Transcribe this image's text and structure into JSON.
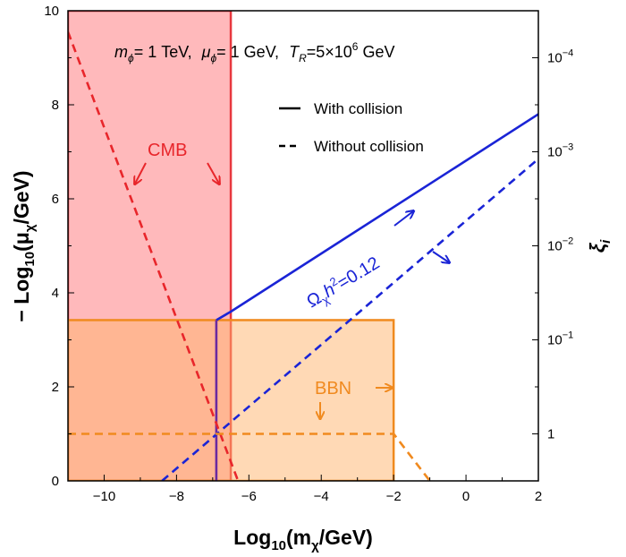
{
  "chart_data": {
    "type": "line",
    "title": "",
    "params_text": {
      "m_symbol": "m",
      "m_sub": "ϕ",
      "m_value": "= 1 TeV,",
      "mu_symbol": "μ",
      "mu_sub": "ϕ",
      "mu_value": "= 1 GeV,",
      "t_symbol": "T",
      "t_sub": "R",
      "t_value": "=5×10",
      "t_exp": "6",
      "t_unit": " GeV"
    },
    "xlabel": {
      "pre": "Log",
      "sub": "10",
      "open": "(m",
      "greek_sub": "χ",
      "post": "/GeV)"
    },
    "ylabel_left": {
      "pre": "− Log",
      "sub": "10",
      "open": "(μ",
      "greek_sub": "χ",
      "post": "/GeV)"
    },
    "ylabel_right": {
      "symbol": "ξ",
      "sub": "i"
    },
    "xlim": [
      -11,
      2
    ],
    "ylim": [
      0,
      10
    ],
    "x_ticks": [
      "−10",
      "−8",
      "−6",
      "−4",
      "−2",
      "0",
      "2"
    ],
    "x_tick_values": [
      -10,
      -8,
      -6,
      -4,
      -2,
      0,
      2
    ],
    "y_ticks": [
      "0",
      "2",
      "4",
      "6",
      "8",
      "10"
    ],
    "y_tick_values": [
      0,
      2,
      4,
      6,
      8,
      10
    ],
    "right_ticks": [
      {
        "y": 1.0,
        "base": "1",
        "exp": ""
      },
      {
        "y": 3.0,
        "base": "10",
        "exp": "−1"
      },
      {
        "y": 5.0,
        "base": "10",
        "exp": "−2"
      },
      {
        "y": 7.0,
        "base": "10",
        "exp": "−3"
      },
      {
        "y": 9.0,
        "base": "10",
        "exp": "−4"
      }
    ],
    "legend": {
      "position": "top-right",
      "entries": [
        {
          "label": "With collision",
          "style": "solid"
        },
        {
          "label": "Without collision",
          "style": "dashed"
        }
      ]
    },
    "regions": [
      {
        "name": "CMB",
        "x": [
          -11,
          -6.5
        ],
        "y": [
          0,
          10
        ],
        "fill": "#ff7f84",
        "opacity": 0.55,
        "edge": "#e8373e"
      },
      {
        "name": "BBN",
        "x": [
          -11,
          -2
        ],
        "y": [
          0,
          3.42
        ],
        "fill": "#ffb46b",
        "opacity": 0.5,
        "edge": "#f08a1f"
      }
    ],
    "series": [
      {
        "style": "solid",
        "color": "#1a24d6",
        "points": [
          [
            -6.9,
            3.42
          ],
          [
            -6.5,
            3.6
          ],
          [
            2,
            7.8
          ]
        ]
      },
      {
        "style": "solid",
        "color": "#6a2aa0",
        "points": [
          [
            -6.9,
            0
          ],
          [
            -6.9,
            3.42
          ]
        ]
      },
      {
        "style": "dashed",
        "color": "#1a24d6",
        "points": [
          [
            -8.4,
            0
          ],
          [
            2,
            6.85
          ]
        ]
      },
      {
        "style": "dashed",
        "color": "#e8262b",
        "points": [
          [
            -11,
            9.55
          ],
          [
            -6.3,
            0
          ]
        ]
      },
      {
        "style": "dashed",
        "color": "#f08a1f",
        "points": [
          [
            -11,
            1.0
          ],
          [
            -2,
            1.0
          ],
          [
            -1.0,
            0
          ]
        ]
      }
    ],
    "annotations": {
      "cmb_label": "CMB",
      "bbn_label": "BBN",
      "omega_symbol": "Ω",
      "omega_sub": "χ",
      "omega_h": "h",
      "omega_exp": "2",
      "omega_value": "=0.12",
      "colors": {
        "cmb": "#e8262b",
        "bbn": "#f08a1f",
        "omega": "#1a24d6"
      }
    }
  }
}
